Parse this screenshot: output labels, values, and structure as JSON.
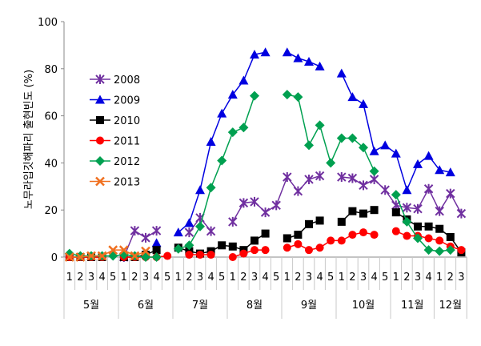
{
  "chart_data": {
    "type": "line",
    "title": "",
    "ylabel": "노무라입깃해파리 출현빈도 (%)",
    "xlabel": "",
    "ylim": [
      0,
      100
    ],
    "yticks": [
      0,
      20,
      40,
      60,
      80,
      100
    ],
    "grid": false,
    "legend_position": "left-inside",
    "months": [
      {
        "label": "5월",
        "weeks": 5
      },
      {
        "label": "6월",
        "weeks": 5
      },
      {
        "label": "7월",
        "weeks": 5
      },
      {
        "label": "8월",
        "weeks": 5
      },
      {
        "label": "9월",
        "weeks": 5
      },
      {
        "label": "10월",
        "weeks": 5
      },
      {
        "label": "11월",
        "weeks": 4
      },
      {
        "label": "12월",
        "weeks": 3
      }
    ],
    "categories": [
      "1",
      "2",
      "3",
      "4",
      "5",
      "1",
      "2",
      "3",
      "4",
      "5",
      "1",
      "2",
      "3",
      "4",
      "5",
      "1",
      "2",
      "3",
      "4",
      "5",
      "1",
      "2",
      "3",
      "4",
      "5",
      "1",
      "2",
      "3",
      "4",
      "5",
      "1",
      "2",
      "3",
      "4",
      "1",
      "2",
      "3"
    ],
    "series": [
      {
        "name": "2008",
        "color": "#7030a0",
        "marker": "asterisk",
        "values": [
          null,
          null,
          null,
          null,
          null,
          0,
          11.2,
          8.2,
          11.2,
          null,
          null,
          10.5,
          16.7,
          11,
          null,
          15,
          23,
          23.5,
          19,
          22,
          34,
          28,
          33,
          34.5,
          null,
          34,
          33.5,
          30.5,
          33,
          28.5,
          22,
          21,
          20.5,
          29,
          19.5,
          27,
          18.5
        ]
      },
      {
        "name": "2009",
        "color": "#0000e0",
        "marker": "triangle",
        "values": [
          null,
          null,
          null,
          null,
          null,
          null,
          null,
          null,
          6,
          null,
          10.5,
          14.5,
          28.5,
          49,
          61,
          69,
          75,
          86,
          87,
          null,
          87,
          84.5,
          83,
          81,
          null,
          78,
          68,
          65,
          45,
          47.5,
          44,
          28.5,
          39.5,
          43,
          37,
          36,
          null
        ]
      },
      {
        "name": "2010",
        "color": "#000000",
        "marker": "square",
        "values": [
          0,
          0,
          0,
          0,
          null,
          0,
          0,
          1,
          3,
          null,
          4,
          2.5,
          1.5,
          2.5,
          5,
          4.5,
          3,
          7,
          10,
          null,
          8,
          9.5,
          14,
          15.5,
          null,
          15,
          19.5,
          18.5,
          20,
          null,
          19,
          16,
          13,
          13,
          12,
          8.5,
          2
        ]
      },
      {
        "name": "2011",
        "color": "#ff0000",
        "marker": "circle",
        "values": [
          0,
          0,
          0,
          0,
          null,
          0,
          0,
          0,
          0,
          0.5,
          null,
          1,
          1,
          1,
          null,
          0,
          1.5,
          3,
          3,
          null,
          4,
          5.5,
          3,
          4,
          7,
          7,
          9.5,
          10.5,
          9.5,
          null,
          11,
          9,
          9,
          8,
          7,
          4.5,
          3
        ]
      },
      {
        "name": "2012",
        "color": "#00a050",
        "marker": "diamond",
        "values": [
          1.5,
          0.5,
          0.5,
          0.5,
          0.5,
          1,
          0.5,
          0,
          0,
          null,
          3.5,
          5,
          13,
          29.5,
          41,
          53,
          55,
          68.5,
          null,
          null,
          69,
          68,
          47.5,
          56,
          40,
          50.5,
          50.5,
          46.5,
          36.5,
          null,
          26.5,
          15,
          8,
          3,
          2.5,
          3,
          null
        ]
      },
      {
        "name": "2013",
        "color": "#f07020",
        "marker": "x",
        "values": [
          0,
          0,
          0.5,
          0.5,
          3,
          3,
          0.5,
          2.5,
          null,
          null,
          null,
          null,
          null,
          null,
          null,
          null,
          null,
          null,
          null,
          null,
          null,
          null,
          null,
          null,
          null,
          null,
          null,
          null,
          null,
          null,
          null,
          null,
          null,
          null,
          null,
          null,
          null
        ]
      }
    ]
  }
}
